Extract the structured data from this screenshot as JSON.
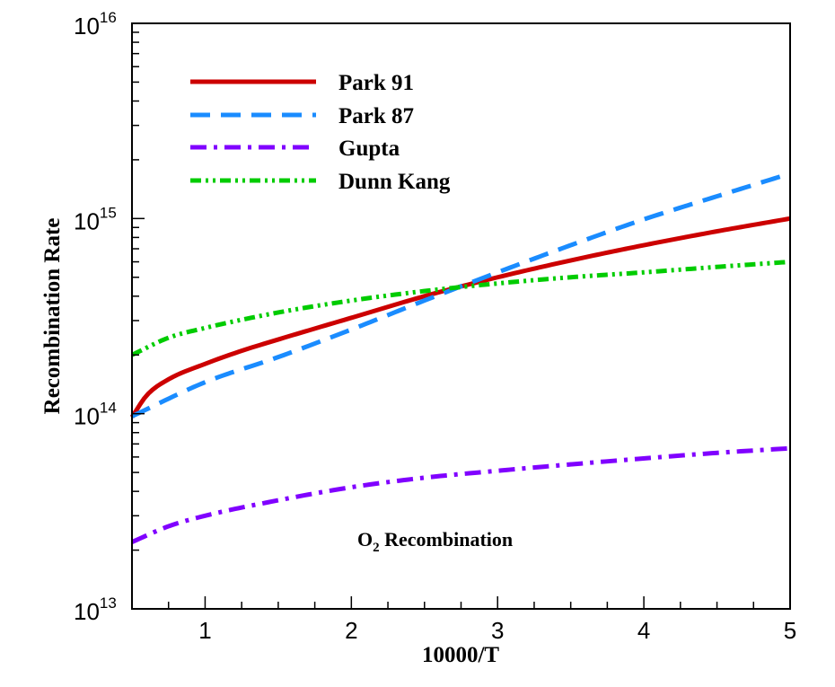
{
  "chart_data": {
    "type": "line",
    "title": "",
    "xlabel": "10000/T",
    "ylabel": "Recombination Rate",
    "xlim": [
      0.5,
      5
    ],
    "ylim": [
      10000000000000.0,
      1e+16
    ],
    "yscale": "log",
    "x_ticks": [
      {
        "value": 1,
        "label": "1"
      },
      {
        "value": 2,
        "label": "2"
      },
      {
        "value": 3,
        "label": "3"
      },
      {
        "value": 4,
        "label": "4"
      },
      {
        "value": 5,
        "label": "5"
      }
    ],
    "y_ticks": [
      {
        "value": 10000000000000.0,
        "base": "10",
        "exp": "13"
      },
      {
        "value": 100000000000000.0,
        "base": "10",
        "exp": "14"
      },
      {
        "value": 1000000000000000.0,
        "base": "10",
        "exp": "15"
      },
      {
        "value": 1e+16,
        "base": "10",
        "exp": "16"
      }
    ],
    "annotation": {
      "main": "O",
      "sub": "2",
      "rest": " Recombination"
    },
    "legend_position": "top-left",
    "grid": false,
    "series": [
      {
        "name": "Park 91",
        "color": "#cc0000",
        "style": "solid",
        "x": [
          0.5,
          0.6,
          0.75,
          1.0,
          1.25,
          1.5,
          2.0,
          2.5,
          3.0,
          3.5,
          4.0,
          4.5,
          5.0
        ],
        "y": [
          96000000000000.0,
          124000000000000.0,
          150000000000000.0,
          180000000000000.0,
          210000000000000.0,
          240000000000000.0,
          310000000000000.0,
          400000000000000.0,
          500000000000000.0,
          610000000000000.0,
          730000000000000.0,
          860000000000000.0,
          1000000000000000.0
        ]
      },
      {
        "name": "Park 87",
        "color": "#1a8cff",
        "style": "dashed",
        "x": [
          0.5,
          1.0,
          1.5,
          2.0,
          2.5,
          3.0,
          3.5,
          4.0,
          4.5,
          5.0
        ],
        "y": [
          97000000000000.0,
          145000000000000.0,
          195000000000000.0,
          270000000000000.0,
          380000000000000.0,
          530000000000000.0,
          730000000000000.0,
          990000000000000.0,
          1300000000000000.0,
          1700000000000000.0
        ]
      },
      {
        "name": "Gupta",
        "color": "#8000ff",
        "style": "dashdot",
        "x": [
          0.5,
          0.75,
          1.0,
          1.5,
          2.0,
          2.5,
          3.0,
          3.5,
          4.0,
          4.5,
          5.0
        ],
        "y": [
          22000000000000.0,
          26500000000000.0,
          30000000000000.0,
          36000000000000.0,
          42000000000000.0,
          47000000000000.0,
          51000000000000.0,
          55000000000000.0,
          59000000000000.0,
          63000000000000.0,
          66500000000000.0
        ]
      },
      {
        "name": "Dunn Kang",
        "color": "#00cc00",
        "style": "dashdotdot",
        "x": [
          0.5,
          0.75,
          1.0,
          1.5,
          2.0,
          2.5,
          3.0,
          3.5,
          4.0,
          4.5,
          5.0
        ],
        "y": [
          200000000000000.0,
          245000000000000.0,
          275000000000000.0,
          330000000000000.0,
          380000000000000.0,
          425000000000000.0,
          465000000000000.0,
          500000000000000.0,
          530000000000000.0,
          565000000000000.0,
          600000000000000.0
        ]
      }
    ]
  }
}
